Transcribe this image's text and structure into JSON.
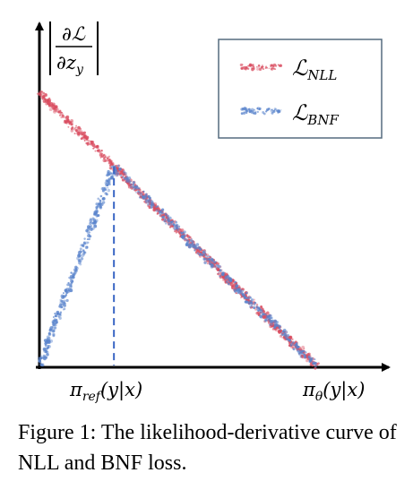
{
  "chart_data": {
    "type": "scatter",
    "title": "",
    "xlabel": "",
    "ylabel": "|∂ℒ/∂z_y|",
    "x_ticks": [
      "π_ref(y|x)",
      "π_θ(y|x)"
    ],
    "legend": {
      "placement": "top-right",
      "entries": [
        "ℒ_NLL",
        "ℒ_BNF"
      ]
    },
    "grid": false,
    "series": [
      {
        "name": "ℒ_NLL",
        "color": "#d94c5f",
        "x": [
          0.0,
          1.0
        ],
        "y": [
          1.0,
          0.0
        ]
      },
      {
        "name": "ℒ_BNF",
        "color": "#5a84cc",
        "x": [
          0.0,
          0.27,
          1.0
        ],
        "y": [
          0.0,
          0.73,
          0.0
        ]
      }
    ],
    "annotations": [
      {
        "type": "vertical-dashed",
        "x": 0.27,
        "label": "π_ref(y|x)"
      }
    ]
  },
  "figure": {
    "y_label": {
      "numerator": "∂ℒ",
      "denominator": "∂z",
      "denominator_sub": "y"
    },
    "x_tick_ref": {
      "base": "π",
      "sub": "ref",
      "rest": "(y|x)"
    },
    "x_tick_theta": {
      "base": "π",
      "sub": "θ",
      "rest": "(y|x)"
    },
    "legend_nll": {
      "base": "ℒ",
      "sub": "NLL"
    },
    "legend_bnf": {
      "base": "ℒ",
      "sub": "BNF"
    },
    "caption": "Figure 1: The likelihood-derivative curve of NLL and BNF loss."
  }
}
